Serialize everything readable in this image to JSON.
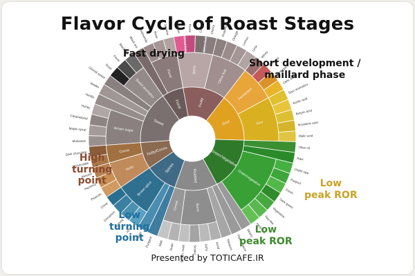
{
  "chart_data": {
    "type": "sunburst",
    "title": "Flavor Cycle of Roast Stages",
    "footer": "Presented by TOTICAFE.IR",
    "callouts": [
      {
        "id": "fast-drying",
        "lines": [
          "Fast drying"
        ],
        "color": "#111111"
      },
      {
        "id": "short-development",
        "lines": [
          "Short development /",
          "maillard phase"
        ],
        "color": "#111111"
      },
      {
        "id": "high-turning-point",
        "lines": [
          "High",
          "turning",
          "point"
        ],
        "color": "#8a4a2e"
      },
      {
        "id": "low-peak-ror-yellow",
        "lines": [
          "Low",
          "peak ROR"
        ],
        "color": "#c9a227"
      },
      {
        "id": "low-peak-ror-green",
        "lines": [
          "Low",
          "peak ROR"
        ],
        "color": "#3e8a2e"
      },
      {
        "id": "low-turning-point",
        "lines": [
          "Low",
          "turning",
          "point"
        ],
        "color": "#1f6fa0"
      }
    ],
    "center": {
      "radius_ratio": 0.17
    },
    "sectors": [
      {
        "name": "Fruity",
        "color": "#8a5e5c",
        "children": [
          {
            "name": "Berry",
            "color": "#b8a6a6",
            "children": [
              {
                "name": "Dried fruit",
                "color": "#e15a93",
                "children": [
                  {
                    "name": "Raisin",
                    "color": "#e15a93"
                  },
                  {
                    "name": "Prune",
                    "color": "#c44a7d"
                  }
                ]
              },
              {
                "name": "Other fruit",
                "color": "#9b8d8d",
                "children": [
                  {
                    "name": "Coconut",
                    "color": "#7a6f6f"
                  },
                  {
                    "name": "Cherry",
                    "color": "#8a7d7d"
                  }
                ]
              }
            ]
          },
          {
            "name": "Citrus fruit",
            "color": "#a08f8e",
            "children": [
              {
                "name": "Grapefruit",
                "color": "#8d8180"
              },
              {
                "name": "Orange",
                "color": "#9a8c8b"
              },
              {
                "name": "Lemon",
                "color": "#a39695"
              },
              {
                "name": "Lime",
                "color": "#b1a5a4"
              }
            ]
          }
        ]
      },
      {
        "name": "Sour",
        "color": "#e0a020",
        "children": [
          {
            "name": "Fermented",
            "color": "#e8a53a",
            "children": [
              {
                "name": "Winey",
                "color": "#9b7070"
              },
              {
                "name": "Whiskey",
                "color": "#c45a5a"
              },
              {
                "name": "Overripe",
                "color": "#d9932a"
              },
              {
                "name": "Citric acid",
                "color": "#e8b52a"
              }
            ]
          },
          {
            "name": "Sour",
            "color": "#d8b020",
            "children": [
              {
                "name": "Sour aromatics",
                "color": "#e0c030"
              },
              {
                "name": "Acetic acid",
                "color": "#e8c53a"
              },
              {
                "name": "Butyric acid",
                "color": "#dcc033"
              },
              {
                "name": "Isovaleric acid",
                "color": "#d4b52a"
              },
              {
                "name": "Malic acid",
                "color": "#e0c540"
              }
            ]
          }
        ]
      },
      {
        "name": "Green/Vegetative",
        "color": "#2f7a2a",
        "children": [
          {
            "name": "Olive oil",
            "color": "#3a9030"
          },
          {
            "name": "Raw",
            "color": "#2a8a2a"
          },
          {
            "name": "Green/vegetative",
            "color": "#38a035",
            "children": [
              {
                "name": "Under-ripe",
                "color": "#45b040"
              },
              {
                "name": "Peapod",
                "color": "#3ca63a"
              },
              {
                "name": "Fresh",
                "color": "#52b848"
              },
              {
                "name": "Dark green",
                "color": "#2f8c2c"
              },
              {
                "name": "Vegetative",
                "color": "#46a83e"
              },
              {
                "name": "Hay-like",
                "color": "#5ab850"
              },
              {
                "name": "Herb-like",
                "color": "#63c055"
              }
            ]
          },
          {
            "name": "Beany",
            "color": "#9a9a9a"
          }
        ]
      },
      {
        "name": "Roasted",
        "color": "#8a8a8a",
        "children": [
          {
            "name": "Pipe tobacco",
            "color": "#9a9a9a"
          },
          {
            "name": "Tobacco",
            "color": "#a6a6a6"
          },
          {
            "name": "Burnt",
            "color": "#8e8e8e",
            "children": [
              {
                "name": "Acrid",
                "color": "#b0b0b0"
              },
              {
                "name": "Ashy",
                "color": "#bababa"
              },
              {
                "name": "Smoky",
                "color": "#a4a4a4"
              },
              {
                "name": "Brown, roast",
                "color": "#c0c0c0"
              }
            ]
          },
          {
            "name": "Cereal",
            "color": "#979797",
            "children": [
              {
                "name": "Grain",
                "color": "#b4b4b4"
              },
              {
                "name": "Malt",
                "color": "#c4c4c4"
              }
            ]
          }
        ]
      },
      {
        "name": "Spices",
        "color": "#3f6a86",
        "children": [
          {
            "name": "Pungent",
            "color": "#3f7da0"
          },
          {
            "name": "Pepper",
            "color": "#4a8db0"
          },
          {
            "name": "Brown spice",
            "color": "#2f7090",
            "children": [
              {
                "name": "Anise",
                "color": "#5aa0c0"
              },
              {
                "name": "Nutmeg",
                "color": "#4a90b0"
              },
              {
                "name": "Cinnamon",
                "color": "#3a80a0"
              },
              {
                "name": "Clove",
                "color": "#2a6f90"
              }
            ]
          }
        ]
      },
      {
        "name": "Nutty/Cocoa",
        "color": "#8a6a50",
        "children": [
          {
            "name": "Nutty",
            "color": "#c08a5a",
            "children": [
              {
                "name": "Peanuts",
                "color": "#d09a60"
              },
              {
                "name": "Hazelnut",
                "color": "#c89055"
              },
              {
                "name": "Almond",
                "color": "#b88050"
              }
            ]
          },
          {
            "name": "Cocoa",
            "color": "#a07040",
            "children": [
              {
                "name": "Chocolate",
                "color": "#a87848"
              },
              {
                "name": "Dark chocolate",
                "color": "#8a5c3a"
              }
            ]
          }
        ]
      },
      {
        "name": "Sweet",
        "color": "#7a7070",
        "children": [
          {
            "name": "Brown sugar",
            "color": "#8a8080",
            "children": [
              {
                "name": "Molasses",
                "color": "#9a9090"
              },
              {
                "name": "Maple syrup",
                "color": "#a49a9a"
              },
              {
                "name": "Caramelized",
                "color": "#8e8484"
              },
              {
                "name": "Honey",
                "color": "#b0a6a6"
              }
            ]
          },
          {
            "name": "Vanilla",
            "color": "#968c8c"
          },
          {
            "name": "Vanillin",
            "color": "#a09696"
          },
          {
            "name": "Overall sweet",
            "color": "#8a8080"
          },
          {
            "name": "Sweet aromatics",
            "color": "#948a8a",
            "children": [
              {
                "name": "Rose",
                "color": "#222222"
              },
              {
                "name": "Floral",
                "color": "#4a4a4a"
              },
              {
                "name": "Black tea",
                "color": "#6a6a6a"
              }
            ]
          }
        ]
      },
      {
        "name": "Floral",
        "color": "#6a5a5a",
        "children": [
          {
            "name": "Black tea",
            "color": "#7a6a6a"
          },
          {
            "name": "Floral",
            "color": "#8a7a7a",
            "children": [
              {
                "name": "Chamomile",
                "color": "#9a8a8a"
              },
              {
                "name": "Rose",
                "color": "#a69696"
              },
              {
                "name": "Jasmine",
                "color": "#b2a2a2"
              }
            ]
          }
        ]
      }
    ]
  }
}
